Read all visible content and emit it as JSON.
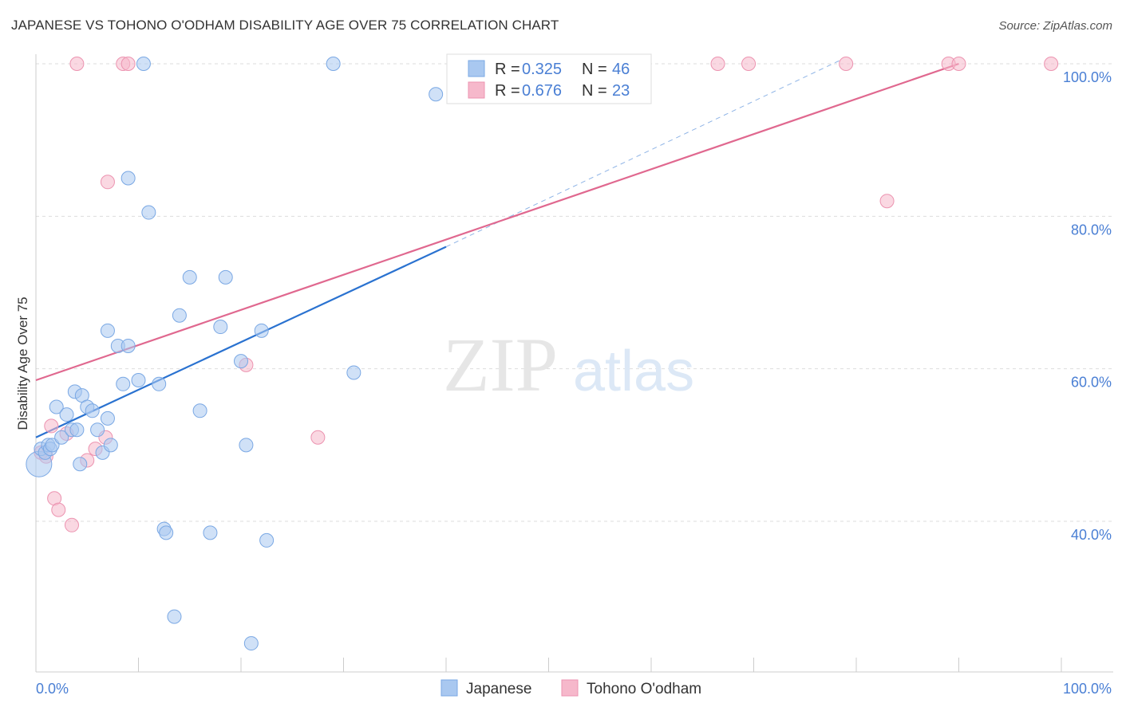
{
  "title": "JAPANESE VS TOHONO O'ODHAM DISABILITY AGE OVER 75 CORRELATION CHART",
  "source": "Source: ZipAtlas.com",
  "watermark": {
    "zip": "ZIP",
    "atlas": "atlas"
  },
  "colors": {
    "japanese_fill": "#a9c8f0",
    "japanese_stroke": "#7aa8e4",
    "japanese_line": "#2a72d0",
    "tohono_fill": "#f6b8cb",
    "tohono_stroke": "#ec93b0",
    "tohono_line": "#e0688f",
    "grid": "#dddddd",
    "tick_text": "#4a7fd4"
  },
  "legend_box": {
    "rows": [
      {
        "r_label": "R = ",
        "r_value": "0.325",
        "n_label": "N = ",
        "n_value": "46"
      },
      {
        "r_label": "R = ",
        "r_value": "0.676",
        "n_label": "N = ",
        "n_value": "23"
      }
    ]
  },
  "chart_data": {
    "type": "scatter",
    "title": "JAPANESE VS TOHONO O'ODHAM DISABILITY AGE OVER 75 CORRELATION CHART",
    "xlabel": "",
    "ylabel": "Disability Age Over 75",
    "xlim": [
      0,
      100
    ],
    "ylim": [
      20,
      102
    ],
    "x_tick_labels": [
      "0.0%",
      "100.0%"
    ],
    "y_ticks": [
      40,
      60,
      80,
      100
    ],
    "y_tick_labels": [
      "40.0%",
      "60.0%",
      "80.0%",
      "100.0%"
    ],
    "grid": true,
    "legend_position": "bottom",
    "series": [
      {
        "name": "Japanese",
        "R": 0.325,
        "N": 46,
        "trend": {
          "x0": 0,
          "y0": 51.0,
          "x1": 40,
          "y1": 76.0,
          "dashed_to_x": 78.5,
          "dashed_to_y": 100.5
        },
        "points": [
          [
            0.3,
            47.5
          ],
          [
            0.5,
            49.5
          ],
          [
            0.9,
            49.0
          ],
          [
            1.2,
            50.0
          ],
          [
            1.4,
            49.5
          ],
          [
            1.6,
            50.0
          ],
          [
            2.0,
            55.0
          ],
          [
            2.5,
            51.0
          ],
          [
            3.0,
            54.0
          ],
          [
            3.5,
            52.0
          ],
          [
            3.8,
            57.0
          ],
          [
            4.0,
            52.0
          ],
          [
            4.3,
            47.5
          ],
          [
            4.5,
            56.5
          ],
          [
            5.0,
            55.0
          ],
          [
            5.5,
            54.5
          ],
          [
            6.0,
            52.0
          ],
          [
            6.5,
            49.0
          ],
          [
            7.0,
            53.5
          ],
          [
            7.3,
            50.0
          ],
          [
            7.0,
            65.0
          ],
          [
            8.0,
            63.0
          ],
          [
            8.5,
            58.0
          ],
          [
            9.0,
            63.0
          ],
          [
            10.0,
            58.5
          ],
          [
            12.0,
            58.0
          ],
          [
            12.5,
            39.0
          ],
          [
            12.7,
            38.5
          ],
          [
            13.5,
            27.5
          ],
          [
            14.0,
            67.0
          ],
          [
            15.0,
            72.0
          ],
          [
            16.0,
            54.5
          ],
          [
            17.0,
            38.5
          ],
          [
            18.0,
            65.5
          ],
          [
            18.5,
            72.0
          ],
          [
            20.0,
            61.0
          ],
          [
            20.5,
            50.0
          ],
          [
            21.0,
            24.0
          ],
          [
            22.0,
            65.0
          ],
          [
            22.5,
            37.5
          ],
          [
            29.0,
            100.0
          ],
          [
            9.0,
            85.0
          ],
          [
            11.0,
            80.5
          ],
          [
            10.5,
            100.0
          ],
          [
            39.0,
            96.0
          ],
          [
            31.0,
            59.5
          ]
        ]
      },
      {
        "name": "Tohono O'odham",
        "R": 0.676,
        "N": 23,
        "trend": {
          "x0": 0,
          "y0": 58.5,
          "x1": 90,
          "y1": 100.0
        },
        "points": [
          [
            0.5,
            49.0
          ],
          [
            1.0,
            48.5
          ],
          [
            1.5,
            52.5
          ],
          [
            1.8,
            43.0
          ],
          [
            2.2,
            41.5
          ],
          [
            3.0,
            51.5
          ],
          [
            3.5,
            39.5
          ],
          [
            5.0,
            48.0
          ],
          [
            5.8,
            49.5
          ],
          [
            6.8,
            51.0
          ],
          [
            4.0,
            100.0
          ],
          [
            8.5,
            100.0
          ],
          [
            9.0,
            100.0
          ],
          [
            7.0,
            84.5
          ],
          [
            20.5,
            60.5
          ],
          [
            27.5,
            51.0
          ],
          [
            66.5,
            100.0
          ],
          [
            69.5,
            100.0
          ],
          [
            79.0,
            100.0
          ],
          [
            83.0,
            82.0
          ],
          [
            89.0,
            100.0
          ],
          [
            90.0,
            100.0
          ],
          [
            99.0,
            100.0
          ]
        ]
      }
    ]
  }
}
